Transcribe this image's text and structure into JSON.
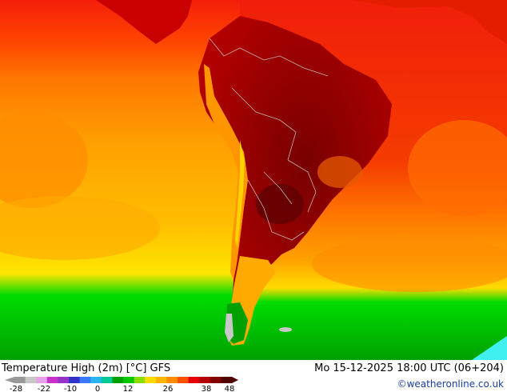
{
  "header": {
    "title": "Temperature High (2m) [°C] GFS",
    "datetime": "Mo 15-12-2025 18:00 UTC (06+204)",
    "credit": "©weatheronline.co.uk"
  },
  "legend": {
    "tick_labels": [
      "-28",
      "-22",
      "-10",
      "0",
      "12",
      "26",
      "38",
      "48"
    ],
    "colors": [
      "#9a9a9a",
      "#c8c8c8",
      "#e6a0e6",
      "#c832c8",
      "#9632c8",
      "#3232c8",
      "#3c78ff",
      "#28b4f0",
      "#00c896",
      "#00a000",
      "#00c800",
      "#8cdc00",
      "#ffdc00",
      "#ffb400",
      "#ff8c00",
      "#ff5000",
      "#e60000",
      "#b40000",
      "#820000",
      "#500000"
    ]
  },
  "map": {
    "region": "South America",
    "colors": {
      "ocean_hot": "#f01e0a",
      "ocean_warm": "#ff6400",
      "ocean_mild": "#ff9600",
      "ocean_cool": "#ffbe00",
      "ocean_cold": "#00dc00",
      "ocean_coldest": "#00a000",
      "land_hot": "#a00000",
      "land_hottest": "#780000",
      "andes_cool": "#ffc800",
      "patagonia_green": "#00b400",
      "ice": "#40f0f0",
      "border": "#c8c8c8"
    }
  }
}
